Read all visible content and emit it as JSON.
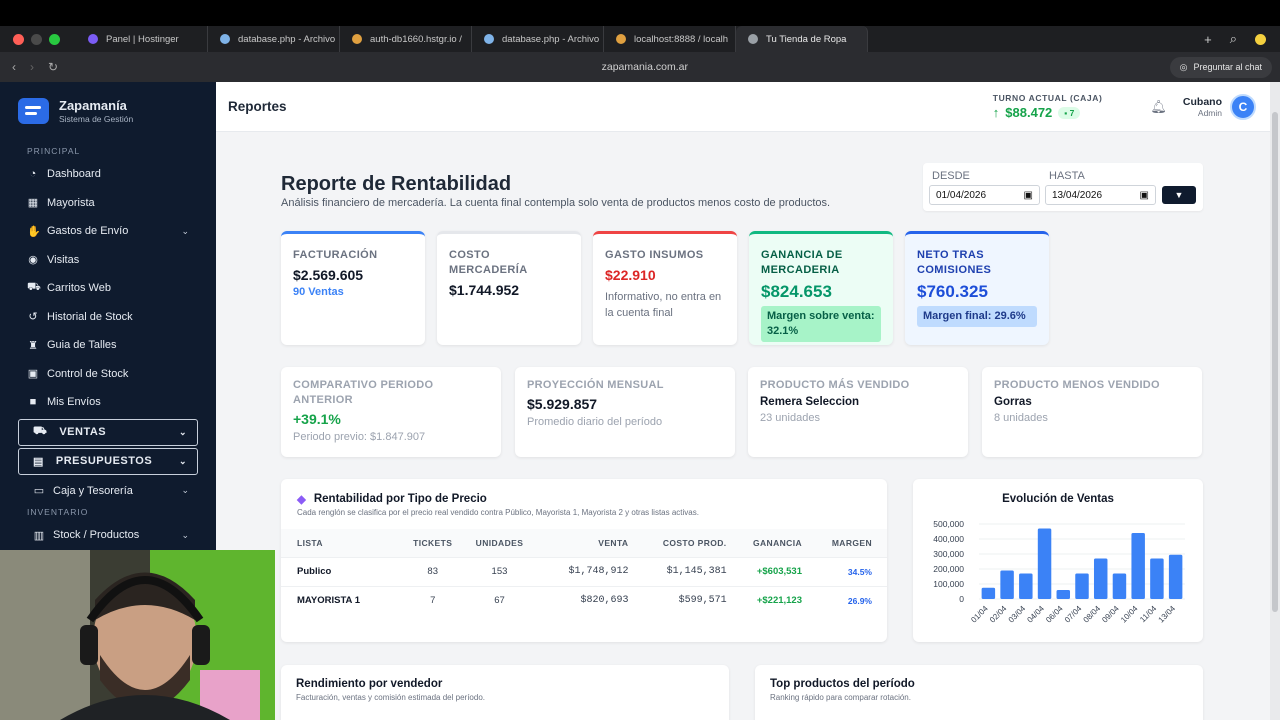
{
  "browser": {
    "tabs": [
      {
        "label": "Panel | Hostinger",
        "color": "#7b5cf5"
      },
      {
        "label": "database.php - Archivo",
        "color": "#7fb3e8"
      },
      {
        "label": "auth-db1660.hstgr.io /",
        "color": "#e0a040"
      },
      {
        "label": "database.php - Archivo",
        "color": "#7fb3e8"
      },
      {
        "label": "localhost:8888 / localh",
        "color": "#e0a040"
      },
      {
        "label": "Tu Tienda de Ropa",
        "color": "#9aa0a6"
      }
    ],
    "url": "zapamania.com.ar",
    "chat_button": "Preguntar al chat"
  },
  "sidebar": {
    "brand_title": "Zapamanía",
    "brand_subtitle": "Sistema de Gestión",
    "section_principal": "PRINCIPAL",
    "items": [
      {
        "label": "Dashboard",
        "icon": "pie-chart-icon"
      },
      {
        "label": "Mayorista",
        "icon": "warehouse-icon"
      },
      {
        "label": "Gastos de Envío",
        "icon": "hand-coins-icon"
      },
      {
        "label": "Visitas",
        "icon": "globe-icon"
      },
      {
        "label": "Carritos Web",
        "icon": "cart-icon"
      },
      {
        "label": "Historial de Stock",
        "icon": "history-icon"
      },
      {
        "label": "Guia de Talles",
        "icon": "shirt-icon"
      },
      {
        "label": "Control de Stock",
        "icon": "truck-icon"
      },
      {
        "label": "Mis Envíos",
        "icon": "box-icon"
      }
    ],
    "ventas": "VENTAS",
    "presupuestos": "PRESUPUESTOS",
    "caja": "Caja y Tesorería",
    "section_inventario": "INVENTARIO",
    "stock": "Stock / Productos"
  },
  "header": {
    "title": "Reportes",
    "turno_label": "TURNO ACTUAL (CAJA)",
    "turno_value": "$88.472",
    "turno_badge": "7",
    "user_name": "Cubano",
    "user_role": "Admin",
    "avatar_initial": "C"
  },
  "report": {
    "title": "Reporte de Rentabilidad",
    "subtitle": "Análisis financiero de mercadería. La cuenta final contempla solo venta de productos menos costo de productos.",
    "desde_label": "DESDE",
    "desde_value": "01/04/2026",
    "hasta_label": "HASTA",
    "hasta_value": "13/04/2026"
  },
  "kpis": {
    "facturacion": {
      "label": "FACTURACIÓN",
      "value": "$2.569.605",
      "sub": "90 Ventas"
    },
    "costo": {
      "label": "COSTO MERCADERÍA",
      "value": "$1.744.952"
    },
    "gasto": {
      "label": "GASTO INSUMOS",
      "value": "$22.910",
      "note": "Informativo, no entra en la cuenta final"
    },
    "ganancia": {
      "label": "GANANCIA DE MERCADERIA",
      "value": "$824.653",
      "pill": "Margen sobre venta: 32.1%"
    },
    "neto": {
      "label": "NETO TRAS COMISIONES",
      "value": "$760.325",
      "pill": "Margen final: 29.6%"
    }
  },
  "comparisons": {
    "periodo": {
      "label": "COMPARATIVO PERIODO ANTERIOR",
      "value": "+39.1%",
      "sub": "Periodo previo: $1.847.907"
    },
    "proyeccion": {
      "label": "PROYECCIÓN MENSUAL",
      "value": "$5.929.857",
      "sub": "Promedio diario del período"
    },
    "mas": {
      "label": "PRODUCTO MÁS VENDIDO",
      "value": "Remera Seleccion",
      "sub": "23 unidades"
    },
    "menos": {
      "label": "PRODUCTO MENOS VENDIDO",
      "value": "Gorras",
      "sub": "8 unidades"
    }
  },
  "price_table": {
    "title": "Rentabilidad por Tipo de Precio",
    "subtitle": "Cada renglón se clasifica por el precio real vendido contra Público, Mayorista 1, Mayorista 2 y otras listas activas.",
    "headers": [
      "LISTA",
      "TICKETS",
      "UNIDADES",
      "VENTA",
      "COSTO PROD.",
      "GANANCIA",
      "MARGEN"
    ],
    "rows": [
      [
        "Publico",
        "83",
        "153",
        "$1,748,912",
        "$1,145,381",
        "+$603,531",
        "34.5%"
      ],
      [
        "MAYORISTA 1",
        "7",
        "67",
        "$820,693",
        "$599,571",
        "+$221,123",
        "26.9%"
      ]
    ]
  },
  "chart_data": {
    "type": "bar",
    "title": "Evolución de Ventas",
    "categories": [
      "01/04",
      "02/04",
      "03/04",
      "04/04",
      "06/04",
      "07/04",
      "08/04",
      "09/04",
      "10/04",
      "11/04",
      "13/04"
    ],
    "values": [
      75000,
      190000,
      170000,
      470000,
      60000,
      170000,
      270000,
      170000,
      440000,
      270000,
      295000
    ],
    "ylim": [
      0,
      500000
    ],
    "yticks": [
      "500,000",
      "400,000",
      "300,000",
      "200,000",
      "100,000",
      "0"
    ],
    "color": "#3b82f6"
  },
  "bottom": {
    "vendedor_title": "Rendimiento por vendedor",
    "vendedor_sub": "Facturación, ventas y comisión estimada del período.",
    "top_title": "Top productos del período",
    "top_sub": "Ranking rápido para comparar rotación."
  }
}
